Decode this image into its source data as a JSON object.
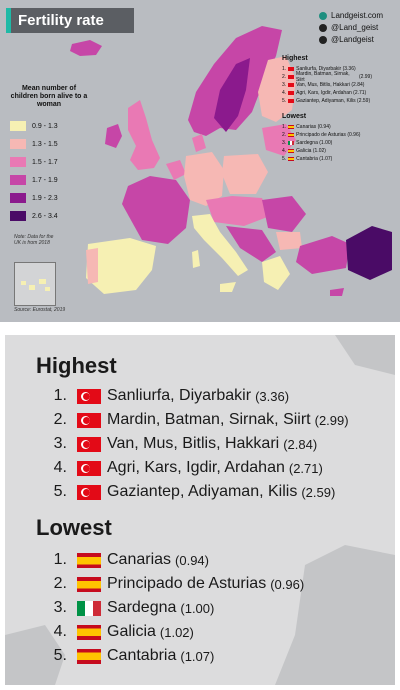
{
  "header": {
    "title": "Fertility rate"
  },
  "social": [
    {
      "icon": "globe-icon",
      "handle": "Landgeist.com"
    },
    {
      "icon": "instagram-icon",
      "handle": "@Land_geist"
    },
    {
      "icon": "twitter-icon",
      "handle": "@Landgeist"
    }
  ],
  "legend": {
    "title": "Mean number of children born alive to a woman",
    "items": [
      {
        "range": "0.9 - 1.3",
        "color": "#f6f0b3"
      },
      {
        "range": "1.3 - 1.5",
        "color": "#f6b8b4"
      },
      {
        "range": "1.5 - 1.7",
        "color": "#e979b4"
      },
      {
        "range": "1.7 - 1.9",
        "color": "#c646a7"
      },
      {
        "range": "1.9 - 2.3",
        "color": "#8b1a8d"
      },
      {
        "range": "2.6 - 3.4",
        "color": "#4a0b66"
      }
    ]
  },
  "note": "Note: Data for the UK is from 2018",
  "source": "Source: Eurostat, 2019",
  "highest": {
    "heading": "Highest",
    "items": [
      {
        "rank": "1.",
        "flag": "turkey-flag-icon",
        "name": "Sanliurfa, Diyarbakir",
        "value": "(3.36)"
      },
      {
        "rank": "2.",
        "flag": "turkey-flag-icon",
        "name": "Mardin, Batman, Sirnak, Siirt",
        "value": "(2.99)"
      },
      {
        "rank": "3.",
        "flag": "turkey-flag-icon",
        "name": "Van, Mus, Bitlis, Hakkari",
        "value": "(2.84)"
      },
      {
        "rank": "4.",
        "flag": "turkey-flag-icon",
        "name": "Agri, Kars, Igdir, Ardahan",
        "value": "(2.71)"
      },
      {
        "rank": "5.",
        "flag": "turkey-flag-icon",
        "name": "Gaziantep, Adiyaman, Kilis",
        "value": "(2.59)"
      }
    ]
  },
  "lowest": {
    "heading": "Lowest",
    "items": [
      {
        "rank": "1.",
        "flag": "spain-flag-icon",
        "name": "Canarias",
        "value": "(0.94)"
      },
      {
        "rank": "2.",
        "flag": "spain-flag-icon",
        "name": "Principado de Asturias",
        "value": "(0.96)"
      },
      {
        "rank": "3.",
        "flag": "italy-flag-icon",
        "name": "Sardegna",
        "value": "(1.00)"
      },
      {
        "rank": "4.",
        "flag": "spain-flag-icon",
        "name": "Galicia",
        "value": "(1.02)"
      },
      {
        "rank": "5.",
        "flag": "spain-flag-icon",
        "name": "Cantabria",
        "value": "(1.07)"
      }
    ]
  }
}
